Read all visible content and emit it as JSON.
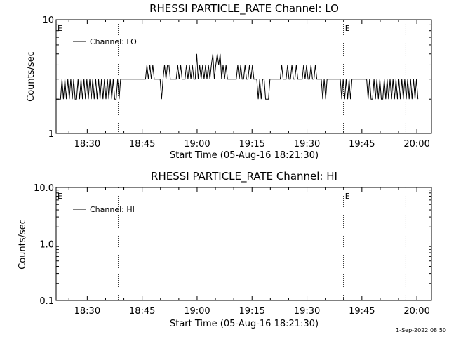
{
  "footer_date": "1-Sep-2022 08:50",
  "chart_data": [
    {
      "type": "line",
      "title": "RHESSI PARTICLE_RATE Channel: LO",
      "xlabel": "Start Time (05-Aug-16 18:21:30)",
      "ylabel": "Counts/sec",
      "yscale": "log",
      "xlim": [
        "18:21:30",
        "20:04:00"
      ],
      "ylim": [
        1,
        10
      ],
      "x_tick_labels": [
        "18:30",
        "18:45",
        "19:00",
        "19:15",
        "19:30",
        "19:45",
        "20:00"
      ],
      "x_ticks_min": [
        510,
        1410,
        2310,
        3210,
        4110,
        5010,
        5910
      ],
      "y_tick_labels": [
        "1",
        "10"
      ],
      "y_ticks": [
        1,
        10
      ],
      "event_markers": [
        {
          "label": "E",
          "time": "18:21:30",
          "t": 0,
          "line": false
        },
        {
          "label": "",
          "time": "18:38:30",
          "t": 1020,
          "line": true
        },
        {
          "label": "E",
          "time": "19:40:00",
          "t": 4710,
          "line": true
        },
        {
          "label": "",
          "time": "19:57:00",
          "t": 5730,
          "line": true
        }
      ],
      "series": [
        {
          "name": "Channel: LO",
          "t_start": 0,
          "t_step": 60,
          "values": [
            2,
            2,
            2,
            2,
            3,
            2,
            3,
            2,
            3,
            2,
            3,
            2,
            3,
            2,
            2,
            3,
            2,
            3,
            2,
            3,
            2,
            3,
            2,
            3,
            2,
            3,
            2,
            3,
            2,
            3,
            2,
            3,
            2,
            3,
            2,
            3,
            2,
            3,
            2,
            3,
            2,
            2,
            3,
            2,
            3,
            3,
            3,
            3,
            3,
            3,
            3,
            3,
            3,
            3,
            3,
            3,
            3,
            3,
            3,
            3,
            3,
            3,
            4,
            3,
            4,
            3,
            4,
            3,
            3,
            3,
            3,
            3,
            2,
            3,
            4,
            3,
            4,
            4,
            3,
            3,
            3,
            3,
            3,
            4,
            3,
            4,
            3,
            3,
            3,
            4,
            3,
            4,
            3,
            4,
            3,
            3,
            5,
            3,
            4,
            3,
            4,
            3,
            4,
            3,
            4,
            3,
            4,
            5,
            3,
            4,
            5,
            4,
            5,
            3,
            4,
            3,
            4,
            3,
            3,
            3,
            3,
            3,
            3,
            3,
            4,
            3,
            4,
            3,
            3,
            4,
            3,
            3,
            4,
            3,
            4,
            3,
            3,
            3,
            2,
            3,
            2,
            3,
            3,
            2,
            2,
            2,
            3,
            3,
            3,
            3,
            3,
            3,
            3,
            3,
            4,
            3,
            3,
            3,
            4,
            3,
            3,
            4,
            3,
            3,
            4,
            3,
            3,
            3,
            3,
            4,
            3,
            4,
            3,
            3,
            4,
            3,
            3,
            4,
            3,
            3,
            3,
            3,
            2,
            3,
            2,
            3,
            3,
            3,
            3,
            3,
            3,
            3,
            3,
            3,
            3,
            2,
            3,
            2,
            3,
            2,
            3,
            2,
            3,
            3,
            3,
            3,
            3,
            3,
            3,
            3,
            3,
            3,
            3,
            2,
            3,
            2,
            2,
            3,
            2,
            3,
            2,
            3,
            2,
            2,
            3,
            2,
            3,
            2,
            3,
            2,
            3,
            2,
            3,
            2,
            3,
            2,
            3,
            2,
            3,
            2,
            3,
            2,
            3,
            2,
            3,
            2,
            3,
            2
          ]
        }
      ]
    },
    {
      "type": "line",
      "title": "RHESSI PARTICLE_RATE Channel: HI",
      "xlabel": "Start Time (05-Aug-16 18:21:30)",
      "ylabel": "Counts/sec",
      "yscale": "log",
      "xlim": [
        "18:21:30",
        "20:04:00"
      ],
      "ylim": [
        0.1,
        10.0
      ],
      "x_tick_labels": [
        "18:30",
        "18:45",
        "19:00",
        "19:15",
        "19:30",
        "19:45",
        "20:00"
      ],
      "x_ticks_min": [
        510,
        1410,
        2310,
        3210,
        4110,
        5010,
        5910
      ],
      "y_tick_labels": [
        "0.1",
        "1.0",
        "10.0"
      ],
      "y_ticks": [
        0.1,
        1.0,
        10.0
      ],
      "event_markers": [
        {
          "label": "E",
          "time": "18:21:30",
          "t": 0,
          "line": false
        },
        {
          "label": "",
          "time": "18:38:30",
          "t": 1020,
          "line": true
        },
        {
          "label": "E",
          "time": "19:40:00",
          "t": 4710,
          "line": true
        },
        {
          "label": "",
          "time": "19:57:00",
          "t": 5730,
          "line": true
        }
      ],
      "series": [
        {
          "name": "Channel: HI",
          "t_start": 0,
          "t_step": 60,
          "values": []
        }
      ]
    }
  ]
}
